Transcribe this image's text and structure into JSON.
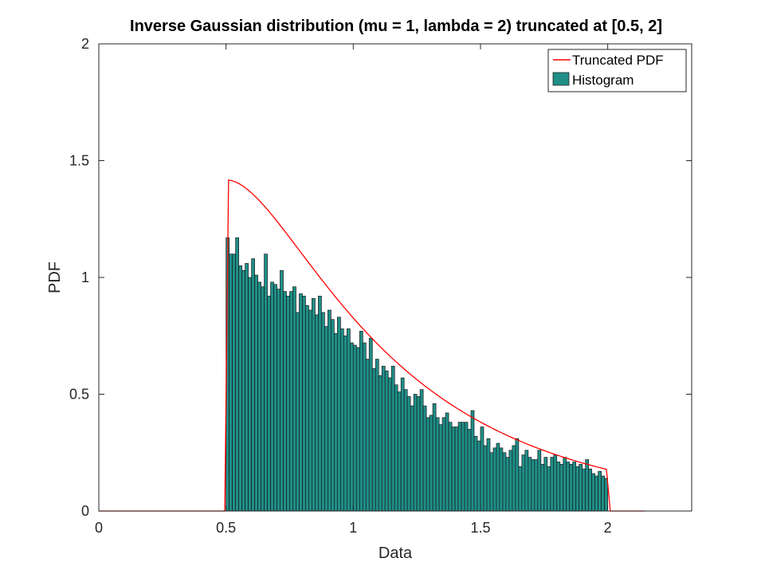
{
  "chart_data": {
    "type": "bar",
    "title": "Inverse Gaussian distribution (mu = 1, lambda = 2) truncated at [0.5, 2]",
    "xlabel": "Data",
    "ylabel": "PDF",
    "xlim": [
      0,
      2.33
    ],
    "ylim": [
      0,
      2
    ],
    "xticks": [
      0,
      0.5,
      1,
      1.5,
      2
    ],
    "xtick_labels": [
      "0",
      "0.5",
      "1",
      "1.5",
      "2"
    ],
    "yticks": [
      0,
      0.5,
      1,
      1.5,
      2
    ],
    "ytick_labels": [
      "0",
      "0.5",
      "1",
      "1.5",
      "2"
    ],
    "legend": {
      "position": "top-right",
      "entries": [
        {
          "label": "Truncated PDF",
          "kind": "line",
          "color": "#ff0000"
        },
        {
          "label": "Histogram",
          "kind": "patch",
          "color": "#1f8f88"
        }
      ]
    },
    "colors": {
      "histogram": "#1f8f88",
      "pdf_line": "#ff0000"
    },
    "histogram": {
      "x_start": 0.5,
      "bin_width": 0.0125,
      "values": [
        1.17,
        1.1,
        1.1,
        1.17,
        1.05,
        1.03,
        1.06,
        1.0,
        1.08,
        1.01,
        0.98,
        0.96,
        1.1,
        0.92,
        0.98,
        0.97,
        0.95,
        1.03,
        0.94,
        0.92,
        0.94,
        0.96,
        0.85,
        0.93,
        0.92,
        0.88,
        0.86,
        0.91,
        0.84,
        0.92,
        0.85,
        0.79,
        0.86,
        0.82,
        0.76,
        0.83,
        0.78,
        0.75,
        0.78,
        0.72,
        0.71,
        0.7,
        0.77,
        0.72,
        0.65,
        0.74,
        0.61,
        0.65,
        0.58,
        0.62,
        0.6,
        0.57,
        0.62,
        0.54,
        0.51,
        0.57,
        0.52,
        0.49,
        0.45,
        0.5,
        0.49,
        0.52,
        0.45,
        0.4,
        0.41,
        0.46,
        0.4,
        0.37,
        0.4,
        0.42,
        0.38,
        0.36,
        0.36,
        0.38,
        0.38,
        0.38,
        0.35,
        0.43,
        0.32,
        0.3,
        0.36,
        0.28,
        0.31,
        0.25,
        0.27,
        0.29,
        0.27,
        0.25,
        0.23,
        0.26,
        0.28,
        0.31,
        0.19,
        0.24,
        0.26,
        0.23,
        0.22,
        0.22,
        0.26,
        0.2,
        0.23,
        0.19,
        0.23,
        0.24,
        0.21,
        0.2,
        0.23,
        0.21,
        0.2,
        0.21,
        0.19,
        0.2,
        0.18,
        0.22,
        0.18,
        0.16,
        0.15,
        0.17,
        0.15,
        0.14
      ]
    },
    "pdf_curve": {
      "mu": 1,
      "lambda": 2,
      "truncation": [
        0.5,
        2
      ],
      "peak": {
        "x": 0.515,
        "y": 1.416
      },
      "end": {
        "x": 2.0,
        "y": 0.176
      },
      "x_range": [
        0,
        2.15
      ]
    }
  }
}
